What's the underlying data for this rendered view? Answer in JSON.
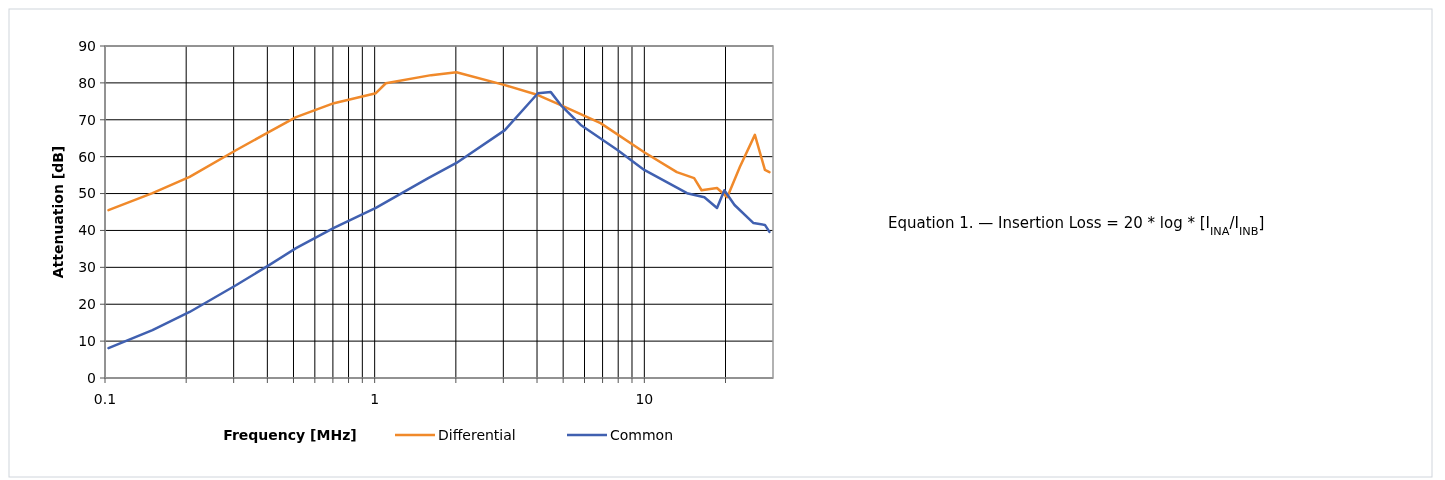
{
  "chart_data": {
    "type": "line",
    "xlabel": "Frequency [MHz]",
    "ylabel": "Attenuation [dB]",
    "log": "x",
    "grid": true,
    "legend": "bottom",
    "line_style": "solid",
    "marker": "none",
    "xlim": [
      0.1,
      30
    ],
    "xticks": [
      0.1,
      {
        "value": 0.2,
        "label": null
      },
      {
        "value": 0.3,
        "label": null
      },
      {
        "value": 0.4,
        "label": null
      },
      {
        "value": 0.5,
        "label": null
      },
      {
        "value": 0.6,
        "label": null
      },
      {
        "value": 0.7,
        "label": null
      },
      {
        "value": 0.8,
        "label": null
      },
      {
        "value": 0.9,
        "label": null
      },
      1,
      {
        "value": 2,
        "label": null
      },
      {
        "value": 3,
        "label": null
      },
      {
        "value": 4,
        "label": null
      },
      {
        "value": 5,
        "label": null
      },
      {
        "value": 6,
        "label": null
      },
      {
        "value": 7,
        "label": null
      },
      {
        "value": 8,
        "label": null
      },
      {
        "value": 9,
        "label": null
      },
      10,
      {
        "value": 20,
        "label": null
      }
    ],
    "ylim": [
      0,
      90
    ],
    "yticks": [
      0,
      10,
      20,
      30,
      40,
      50,
      60,
      70,
      80,
      90
    ],
    "series": [
      {
        "name": "Differential",
        "color": "#f0892a",
        "x": [
          0.103,
          0.15,
          0.206,
          0.307,
          0.406,
          0.511,
          0.706,
          1.01,
          1.1,
          1.62,
          2.01,
          3.04,
          4.03,
          4.9,
          6.88,
          9.99,
          13.2,
          15.3,
          16.3,
          18.6,
          20.3,
          22.6,
          25.7,
          28.0,
          29.1
        ],
        "values": [
          45.5,
          50.1,
          54.5,
          61.8,
          66.7,
          70.7,
          74.5,
          77.2,
          79.9,
          82.1,
          82.9,
          79.4,
          76.7,
          74,
          69.1,
          61.2,
          55.8,
          54.2,
          50.9,
          51.5,
          49,
          57.2,
          65.9,
          56.4,
          55.8
        ]
      },
      {
        "name": "Common",
        "color": "#4060b0",
        "x": [
          0.103,
          0.15,
          0.206,
          0.307,
          0.406,
          0.511,
          0.706,
          1.01,
          1.58,
          2.01,
          3.04,
          4.03,
          4.5,
          4.9,
          5.81,
          7.95,
          9.99,
          14.4,
          16.7,
          18.6,
          19.8,
          21.6,
          25.4,
          28.0,
          29.1
        ],
        "values": [
          8.1,
          13,
          17.9,
          25.2,
          30.6,
          35.2,
          40.7,
          46.1,
          54.2,
          58.3,
          67.2,
          77.2,
          77.5,
          74,
          68.6,
          61.8,
          56.4,
          50.1,
          49,
          46.1,
          50.9,
          46.9,
          42,
          41.5,
          39.6
        ]
      }
    ],
    "annotations": [
      "Equation 1. — Insertion Loss = 20 * log * [I$_{INA}$/I$_{INB}$]"
    ]
  }
}
